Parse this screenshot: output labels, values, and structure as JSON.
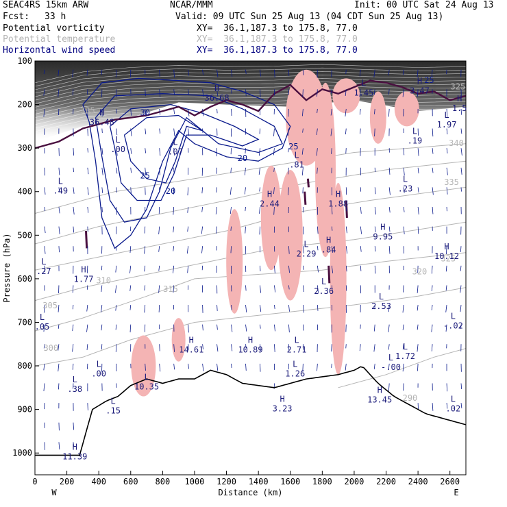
{
  "header": {
    "model": "SEAC4RS 15km ARW",
    "center": "NCAR/MMM",
    "init": "Init: 00 UTC Sat 24 Aug 13",
    "fcst_label": "Fcst:",
    "fcst_value": "33 h",
    "valid": "Valid: 09 UTC Sun 25 Aug 13 (04 CDT Sun 25 Aug 13)"
  },
  "fields": [
    {
      "name": "Potential vorticity",
      "xy": "XY=  36.1,187.3 to 175.8, 77.0",
      "color": "#000000"
    },
    {
      "name": "Potential temperature",
      "xy": "XY=  36.1,187.3 to 175.8, 77.0",
      "color": "#b4b4b4"
    },
    {
      "name": "Horizontal wind speed",
      "xy": "XY=  36.1,187.3 to 175.8, 77.0",
      "color": "#000080"
    }
  ],
  "colors": {
    "pv": "#4a1040",
    "theta": "#b4b4b4",
    "wind": "#0a1a8c",
    "pv_shade": "#f4b4b4",
    "terrain": "#000000"
  },
  "chart_data": {
    "type": "cross-section",
    "xlabel": "Distance (km)",
    "ylabel": "Pressure (hPa)",
    "xlim": [
      0,
      2700
    ],
    "ylim": [
      1050,
      100
    ],
    "xticks": [
      0,
      200,
      400,
      600,
      800,
      1000,
      1200,
      1400,
      1600,
      1800,
      2000,
      2200,
      2400,
      2600
    ],
    "yticks": [
      100,
      200,
      300,
      400,
      500,
      600,
      700,
      800,
      900,
      1000
    ],
    "end_labels": {
      "left": "W",
      "right": "E"
    },
    "theta_labels": [
      {
        "text": "335",
        "x": 330,
        "p": 220
      },
      {
        "text": "340",
        "x": 2640,
        "p": 295
      },
      {
        "text": "335",
        "x": 2610,
        "p": 385
      },
      {
        "text": "325",
        "x": 2590,
        "p": 560
      },
      {
        "text": "320",
        "x": 2410,
        "p": 590
      },
      {
        "text": "315",
        "x": 850,
        "p": 630
      },
      {
        "text": "310",
        "x": 430,
        "p": 610
      },
      {
        "text": "305",
        "x": 95,
        "p": 668
      },
      {
        "text": "300",
        "x": 100,
        "p": 765
      },
      {
        "text": "290",
        "x": 2350,
        "p": 880
      },
      {
        "text": "325",
        "x": 2650,
        "p": 165
      }
    ],
    "wind_labels": [
      {
        "text": "30",
        "x": 690,
        "p": 225
      },
      {
        "text": "25",
        "x": 690,
        "p": 370
      },
      {
        "text": "20",
        "x": 850,
        "p": 405
      },
      {
        "text": "20",
        "x": 1300,
        "p": 330
      },
      {
        "text": "25",
        "x": 1620,
        "p": 303
      },
      {
        "text": "25",
        "x": 2470,
        "p": 150
      }
    ],
    "extrema": [
      {
        "type": "H",
        "value": "36.48",
        "x": 420,
        "p": 238
      },
      {
        "type": "L",
        "value": ".00",
        "x": 520,
        "p": 300
      },
      {
        "type": "L",
        "value": ".49",
        "x": 160,
        "p": 395
      },
      {
        "type": "H",
        "value": "1.77",
        "x": 305,
        "p": 598
      },
      {
        "type": "L",
        "value": ".27",
        "x": 55,
        "p": 580
      },
      {
        "type": "L",
        "value": ".05",
        "x": 45,
        "p": 707
      },
      {
        "type": "H",
        "value": "36.68",
        "x": 1140,
        "p": 182
      },
      {
        "type": "L",
        "value": ".07",
        "x": 880,
        "p": 305
      },
      {
        "type": "L",
        "value": ".81",
        "x": 1640,
        "p": 335
      },
      {
        "type": "L",
        "value": "1.45",
        "x": 2060,
        "p": 170
      },
      {
        "type": "H",
        "value": "3.47",
        "x": 2410,
        "p": 165
      },
      {
        "type": "H",
        "value": "1.5",
        "x": 2660,
        "p": 205
      },
      {
        "type": "L",
        "value": "1.97",
        "x": 2580,
        "p": 243
      },
      {
        "type": "L",
        "value": ".19",
        "x": 2380,
        "p": 280
      },
      {
        "type": "L",
        "value": ".23",
        "x": 2320,
        "p": 390
      },
      {
        "type": "H",
        "value": "2.44",
        "x": 1470,
        "p": 425
      },
      {
        "type": "H",
        "value": "1.88",
        "x": 1900,
        "p": 425
      },
      {
        "type": "H",
        "value": "9.95",
        "x": 2180,
        "p": 500
      },
      {
        "type": "L",
        "value": "2.29",
        "x": 1700,
        "p": 540
      },
      {
        "type": "H",
        "value": ".84",
        "x": 1840,
        "p": 530
      },
      {
        "type": "H",
        "value": "10.12",
        "x": 2580,
        "p": 545
      },
      {
        "type": "L",
        "value": "2.36",
        "x": 1810,
        "p": 625
      },
      {
        "type": "L",
        "value": "2.53",
        "x": 2170,
        "p": 660
      },
      {
        "type": "L",
        "value": "-.02",
        "x": 2620,
        "p": 705
      },
      {
        "type": "H",
        "value": "14.61",
        "x": 980,
        "p": 760
      },
      {
        "type": "H",
        "value": "10.89",
        "x": 1350,
        "p": 760
      },
      {
        "type": "L",
        "value": "2.71",
        "x": 1640,
        "p": 760
      },
      {
        "type": "L",
        "value": "1.72",
        "x": 2320,
        "p": 775
      },
      {
        "type": "L",
        "value": "-.00",
        "x": 2230,
        "p": 800
      },
      {
        "type": "L",
        "value": "1.26",
        "x": 1630,
        "p": 815
      },
      {
        "type": "L",
        "value": ".00",
        "x": 400,
        "p": 815
      },
      {
        "type": "L",
        "value": "10.35",
        "x": 700,
        "p": 845
      },
      {
        "type": "L",
        "value": ".38",
        "x": 250,
        "p": 850
      },
      {
        "type": "H",
        "value": "13.45",
        "x": 2160,
        "p": 875
      },
      {
        "type": "L",
        "value": ".15",
        "x": 490,
        "p": 900
      },
      {
        "type": "H",
        "value": "3.23",
        "x": 1550,
        "p": 895
      },
      {
        "type": "L",
        "value": ".02",
        "x": 2620,
        "p": 895
      },
      {
        "type": "H",
        "value": "11.39",
        "x": 250,
        "p": 1005
      }
    ]
  }
}
